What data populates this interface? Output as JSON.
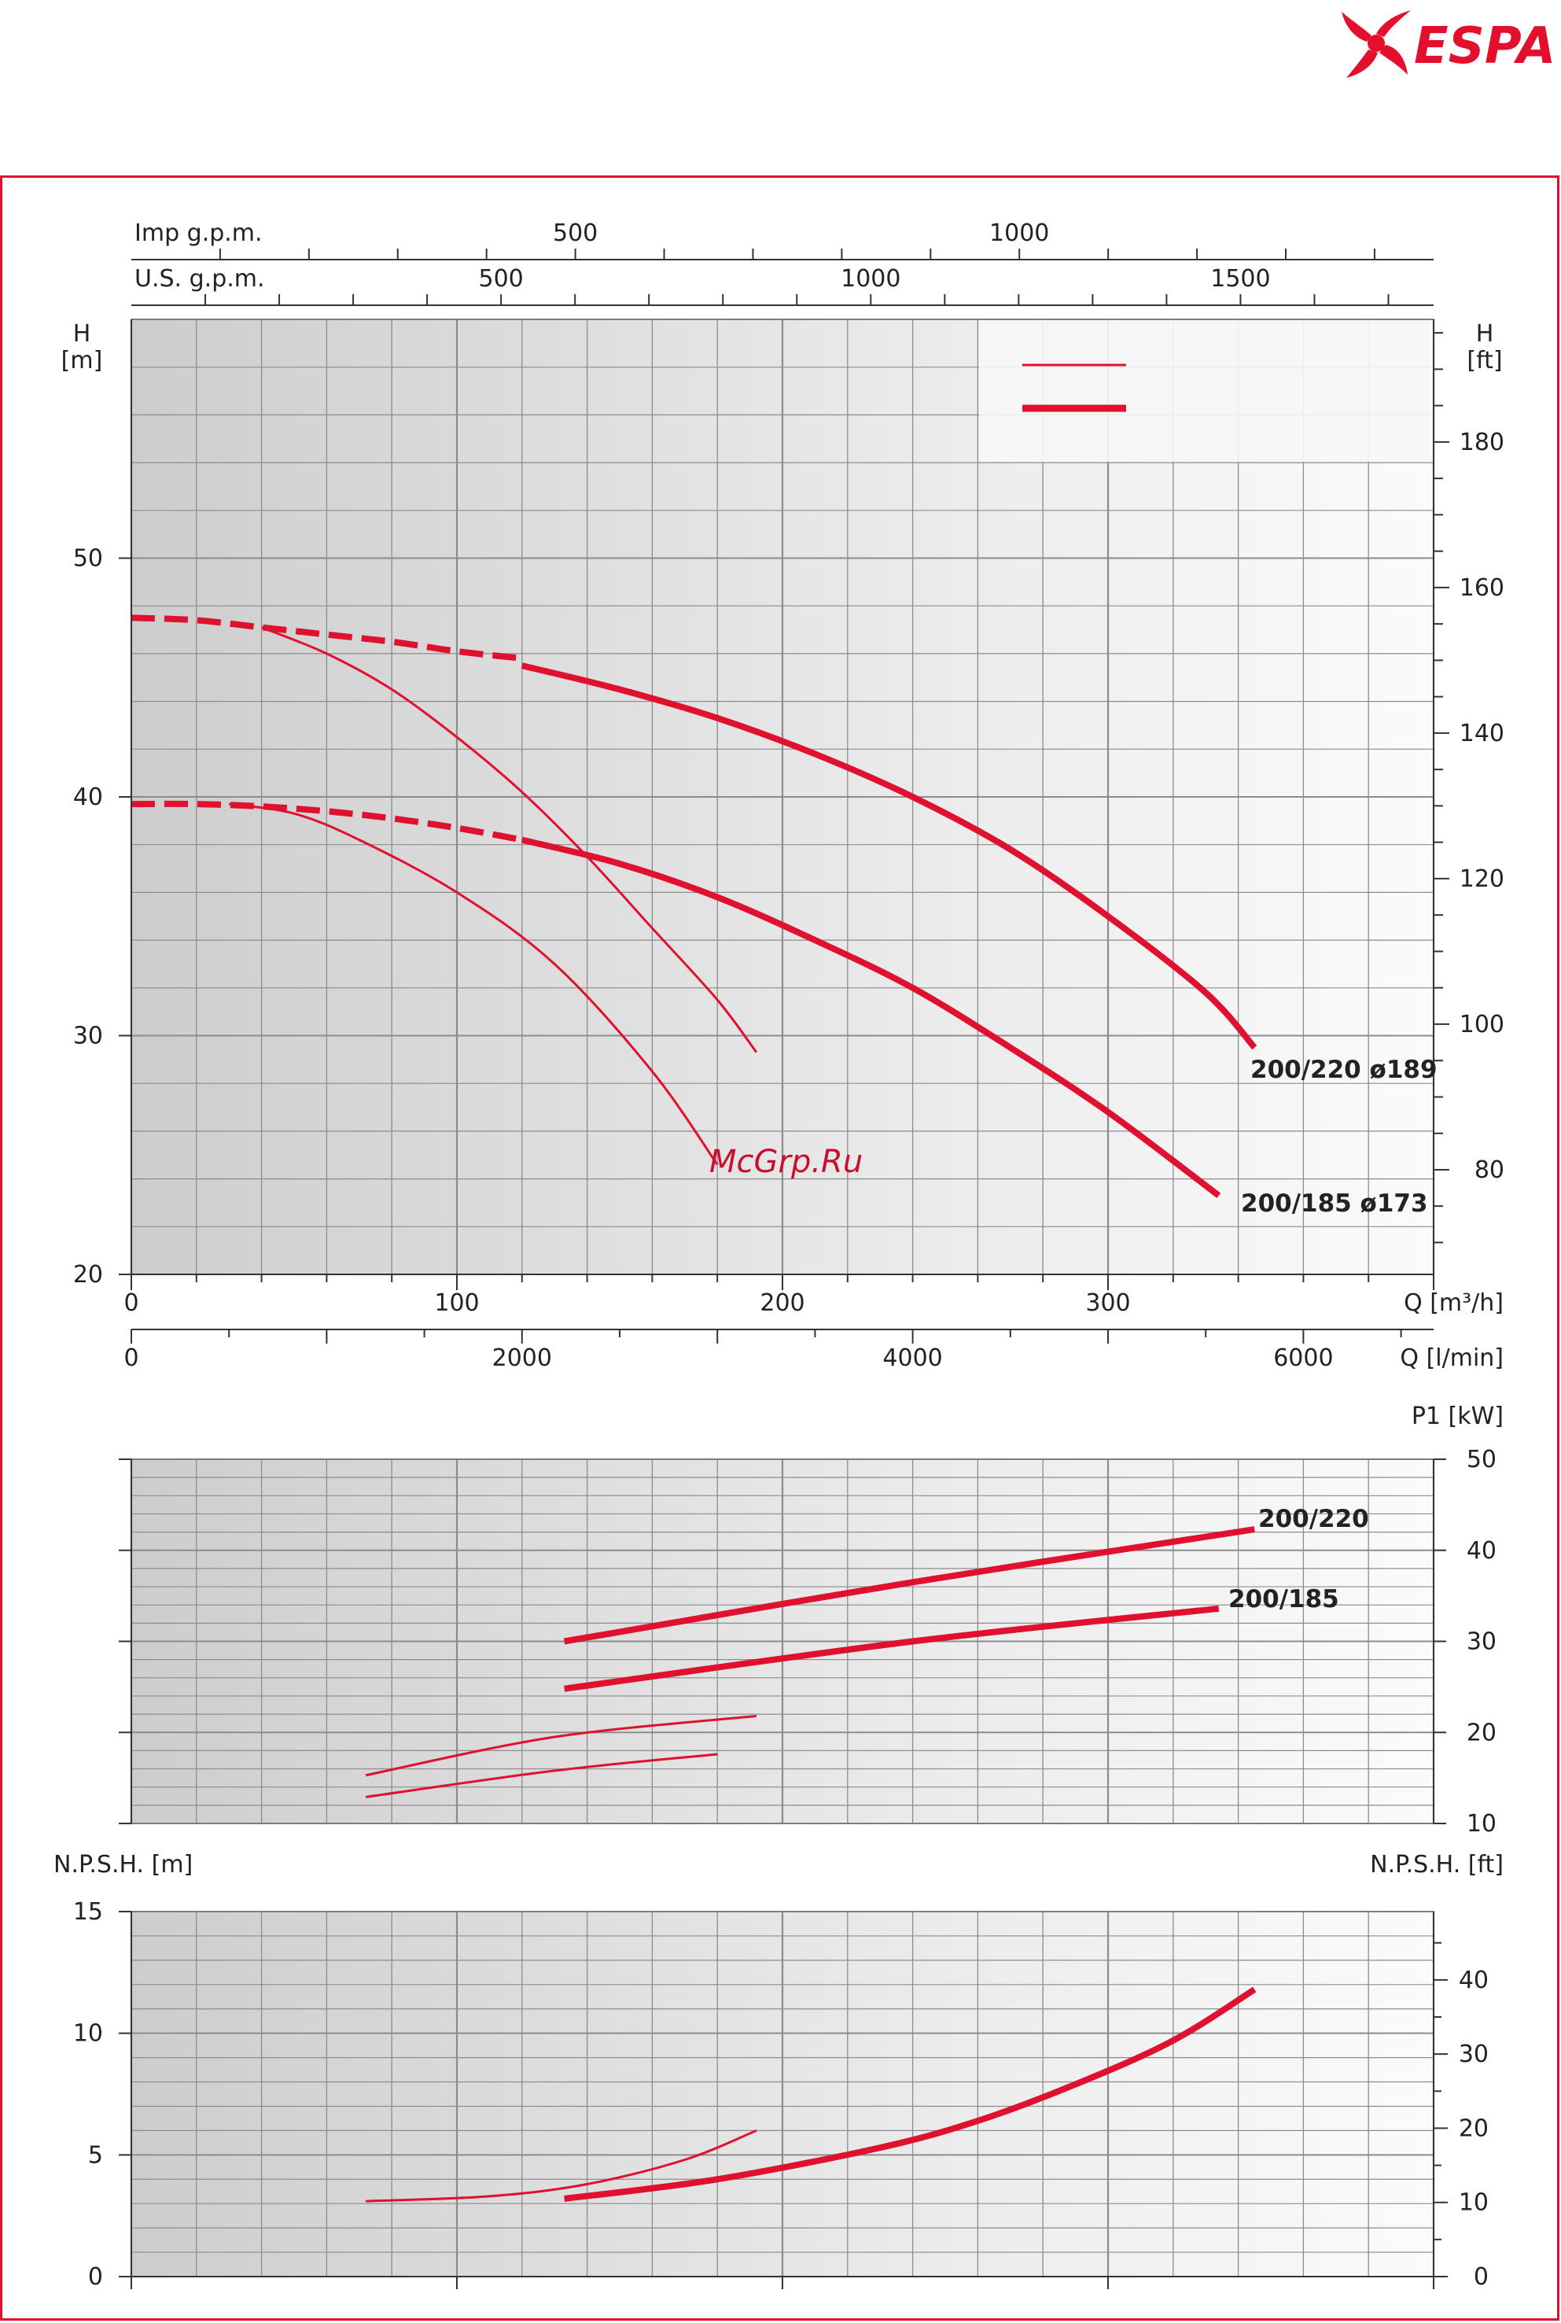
{
  "brand": {
    "name": "ESPA",
    "color": "#e30f2d"
  },
  "watermark": "McGrp.Ru",
  "colors": {
    "curve": "#e0102f",
    "grid": "#8c8c8c",
    "plot_bg_dark": "#cfcfcf",
    "plot_bg_light": "#fafafa"
  },
  "chart_data": [
    {
      "id": "head",
      "type": "line",
      "xlabel": "Q [m³/h]",
      "ylabel": "H [m]",
      "y2label": "H [ft]",
      "xlim": [
        0,
        400
      ],
      "ylim": [
        20,
        60
      ],
      "grid": true,
      "x_ticks": [
        0,
        100,
        200,
        300
      ],
      "y_ticks": [
        20,
        30,
        40,
        50
      ],
      "y2_ticks": [
        80,
        100,
        120,
        140,
        160,
        180
      ],
      "top_axes": [
        {
          "label": "Imp g.p.m.",
          "ticks": [
            500,
            1000
          ]
        },
        {
          "label": "U.S. g.p.m.",
          "ticks": [
            500,
            1000,
            1500
          ]
        }
      ],
      "bottom_axis2": {
        "label": "Q [l/min]",
        "ticks": [
          0,
          2000,
          4000,
          6000
        ]
      },
      "annotations": [
        "200/220  ø189",
        "200/185  ø173"
      ],
      "series": [
        {
          "style": "thick-dashed",
          "x": [
            0,
            20,
            40,
            60,
            80,
            100,
            120
          ],
          "y": [
            47.5,
            47.4,
            47.1,
            46.8,
            46.5,
            46.1,
            45.8
          ]
        },
        {
          "style": "thick",
          "x": [
            120,
            150,
            180,
            210,
            240,
            270,
            300,
            330,
            345
          ],
          "y": [
            45.5,
            44.5,
            43.3,
            41.8,
            40.0,
            37.8,
            35.0,
            31.8,
            29.5
          ]
        },
        {
          "style": "thin",
          "x": [
            40,
            60,
            80,
            100,
            120,
            140,
            160,
            180,
            192
          ],
          "y": [
            47.1,
            46.0,
            44.5,
            42.5,
            40.2,
            37.5,
            34.5,
            31.5,
            29.3
          ]
        },
        {
          "style": "thick-dashed",
          "x": [
            0,
            20,
            40,
            60,
            80,
            100,
            120
          ],
          "y": [
            39.7,
            39.7,
            39.6,
            39.4,
            39.1,
            38.7,
            38.2
          ]
        },
        {
          "style": "thick",
          "x": [
            120,
            150,
            180,
            210,
            240,
            270,
            300,
            334
          ],
          "y": [
            38.2,
            37.2,
            35.8,
            34.0,
            32.0,
            29.5,
            26.8,
            23.3
          ]
        },
        {
          "style": "thin",
          "x": [
            30,
            50,
            70,
            100,
            130,
            160,
            180
          ],
          "y": [
            39.7,
            39.3,
            38.2,
            36.0,
            33.0,
            28.5,
            24.6
          ]
        }
      ]
    },
    {
      "id": "power",
      "type": "line",
      "ylabel": "P1 [kW]",
      "xlim": [
        0,
        400
      ],
      "ylim": [
        10,
        50
      ],
      "y_ticks": [
        10,
        20,
        30,
        40,
        50
      ],
      "grid": true,
      "annotations": [
        "200/220",
        "200/185"
      ],
      "series": [
        {
          "style": "thick",
          "x": [
            133,
            240,
            345
          ],
          "y": [
            30.0,
            36.5,
            42.3
          ]
        },
        {
          "style": "thick",
          "x": [
            133,
            240,
            334
          ],
          "y": [
            24.8,
            30.0,
            33.6
          ]
        },
        {
          "style": "thin",
          "x": [
            72,
            130,
            192
          ],
          "y": [
            15.3,
            19.5,
            21.8
          ]
        },
        {
          "style": "thin",
          "x": [
            72,
            130,
            180
          ],
          "y": [
            12.9,
            15.8,
            17.6
          ]
        }
      ]
    },
    {
      "id": "npsh",
      "type": "line",
      "ylabel": "N.P.S.H. [m]",
      "y2label": "N.P.S.H. [ft]",
      "xlim": [
        0,
        400
      ],
      "ylim": [
        0,
        15
      ],
      "y_ticks": [
        0,
        5,
        10,
        15
      ],
      "y2_ticks": [
        0,
        10,
        20,
        30,
        40
      ],
      "grid": true,
      "series": [
        {
          "style": "thick",
          "x": [
            133,
            180,
            230,
            260,
            290,
            320,
            345
          ],
          "y": [
            3.2,
            4.0,
            5.3,
            6.4,
            7.9,
            9.7,
            11.8
          ]
        },
        {
          "style": "thin",
          "x": [
            72,
            110,
            140,
            170,
            192
          ],
          "y": [
            3.1,
            3.3,
            3.8,
            4.8,
            6.0
          ]
        }
      ]
    }
  ]
}
